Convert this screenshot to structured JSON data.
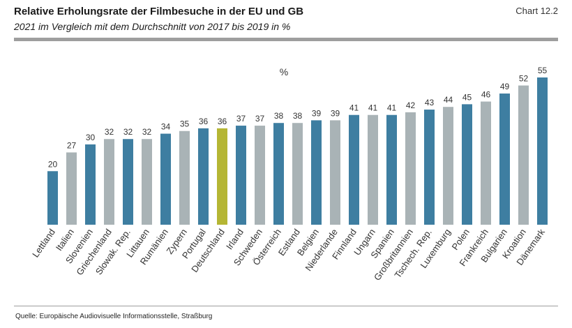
{
  "header": {
    "title": "Relative Erholungsrate der Filmbesuche in der EU und GB",
    "subtitle": "2021 im Vergleich mit dem Durchschnitt von 2017 bis 2019 in %",
    "chart_id": "Chart 12.2"
  },
  "footer": {
    "source": "Quelle: Europäische Audiovisuelle Informationsstelle, Straßburg"
  },
  "colors": {
    "blue": "#3e7ea1",
    "gray": "#a9b3b6",
    "highlight": "#b5b634"
  },
  "chart_data": {
    "type": "bar",
    "title": "Relative Erholungsrate der Filmbesuche in der EU und GB",
    "subtitle": "2021 im Vergleich mit dem Durchschnitt von 2017 bis 2019 in %",
    "unit_label": "%",
    "ylim": [
      0,
      55
    ],
    "grid": false,
    "categories": [
      "Lettland",
      "Italien",
      "Slovenien",
      "Griechenland",
      "Slowak. Rep.",
      "Littauen",
      "Rumänien",
      "Zypern",
      "Portugal",
      "Deutschland",
      "Irland",
      "Schweden",
      "Österreich",
      "Estland",
      "Belgien",
      "Niederlande",
      "Finnland",
      "Ungarn",
      "Spanien",
      "Großbritannien",
      "Tschech. Rep.",
      "Luxemburg",
      "Polen",
      "Frankreich",
      "Bulgarien",
      "Kroation",
      "Dänemark"
    ],
    "values": [
      20,
      27,
      30,
      32,
      32,
      32,
      34,
      35,
      36,
      36,
      37,
      37,
      38,
      38,
      39,
      39,
      41,
      41,
      41,
      42,
      43,
      44,
      45,
      46,
      49,
      52,
      55
    ],
    "bar_colors": [
      "blue",
      "gray",
      "blue",
      "gray",
      "blue",
      "gray",
      "blue",
      "gray",
      "blue",
      "highlight",
      "blue",
      "gray",
      "blue",
      "gray",
      "blue",
      "gray",
      "blue",
      "gray",
      "blue",
      "gray",
      "blue",
      "gray",
      "blue",
      "gray",
      "blue",
      "gray",
      "blue"
    ]
  }
}
